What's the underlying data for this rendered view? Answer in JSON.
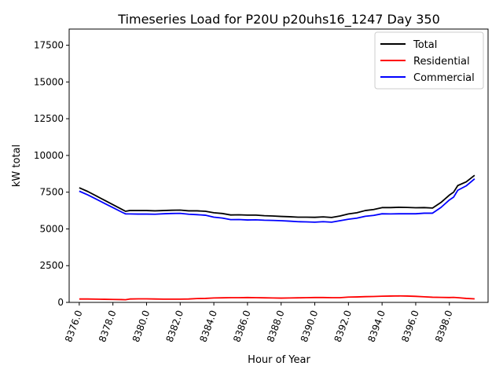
{
  "chart_data": {
    "type": "line",
    "title": "Timeseries Load for P20U p20uhs16_1247  Day 350",
    "xlabel": "Hour of Year",
    "ylabel": "kW total",
    "xlim": [
      8375.4,
      8400.3
    ],
    "ylim": [
      0,
      18600
    ],
    "x_ticks": [
      8376,
      8378,
      8380,
      8382,
      8384,
      8386,
      8388,
      8390,
      8392,
      8394,
      8396,
      8398
    ],
    "x_tick_labels": [
      "8376.0",
      "8378.0",
      "8380.0",
      "8382.0",
      "8384.0",
      "8386.0",
      "8388.0",
      "8390.0",
      "8392.0",
      "8394.0",
      "8396.0",
      "8398.0"
    ],
    "y_ticks": [
      0,
      2500,
      5000,
      7500,
      10000,
      12500,
      15000,
      17500
    ],
    "y_tick_labels": [
      "0",
      "2500",
      "5000",
      "7500",
      "10000",
      "12500",
      "15000",
      "17500"
    ],
    "legend_position": "top-right",
    "x": [
      8376.0,
      8376.5,
      8377.0,
      8377.5,
      8378.0,
      8378.5,
      8378.75,
      8379.0,
      8379.5,
      8380.0,
      8380.5,
      8381.0,
      8381.5,
      8382.0,
      8382.5,
      8383.0,
      8383.5,
      8384.0,
      8384.5,
      8385.0,
      8385.5,
      8386.0,
      8386.5,
      8387.0,
      8387.5,
      8388.0,
      8388.5,
      8389.0,
      8389.5,
      8390.0,
      8390.5,
      8391.0,
      8391.5,
      8392.0,
      8392.5,
      8393.0,
      8393.5,
      8394.0,
      8394.5,
      8395.0,
      8395.5,
      8396.0,
      8396.5,
      8397.0,
      8397.5,
      8398.0,
      8398.25,
      8398.5,
      8399.0,
      8399.5
    ],
    "series": [
      {
        "name": "Total",
        "color": "#000000",
        "values": [
          7800,
          7550,
          7250,
          6950,
          6650,
          6350,
          6200,
          6250,
          6250,
          6250,
          6230,
          6250,
          6270,
          6280,
          6230,
          6230,
          6200,
          6100,
          6050,
          5950,
          5960,
          5940,
          5940,
          5900,
          5880,
          5850,
          5830,
          5800,
          5800,
          5790,
          5820,
          5780,
          5880,
          6020,
          6100,
          6250,
          6320,
          6450,
          6450,
          6470,
          6460,
          6440,
          6450,
          6420,
          6800,
          7300,
          7500,
          7950,
          8200,
          8650
        ]
      },
      {
        "name": "Residential",
        "color": "#ff0000",
        "values": [
          230,
          230,
          220,
          210,
          200,
          190,
          180,
          230,
          240,
          240,
          230,
          220,
          220,
          220,
          230,
          260,
          270,
          300,
          310,
          320,
          320,
          330,
          320,
          310,
          300,
          290,
          300,
          310,
          320,
          330,
          330,
          320,
          320,
          360,
          370,
          390,
          400,
          420,
          430,
          440,
          430,
          410,
          380,
          350,
          340,
          330,
          340,
          320,
          270,
          240
        ]
      },
      {
        "name": "Commercial",
        "color": "#0000ff",
        "values": [
          7570,
          7320,
          7030,
          6740,
          6450,
          6160,
          6020,
          6020,
          6010,
          6010,
          6000,
          6030,
          6050,
          6060,
          6000,
          5970,
          5930,
          5800,
          5740,
          5630,
          5640,
          5610,
          5620,
          5590,
          5580,
          5560,
          5530,
          5490,
          5480,
          5460,
          5490,
          5460,
          5560,
          5660,
          5730,
          5860,
          5920,
          6030,
          6020,
          6030,
          6030,
          6030,
          6070,
          6070,
          6460,
          6970,
          7160,
          7630,
          7930,
          8410
        ]
      }
    ]
  }
}
